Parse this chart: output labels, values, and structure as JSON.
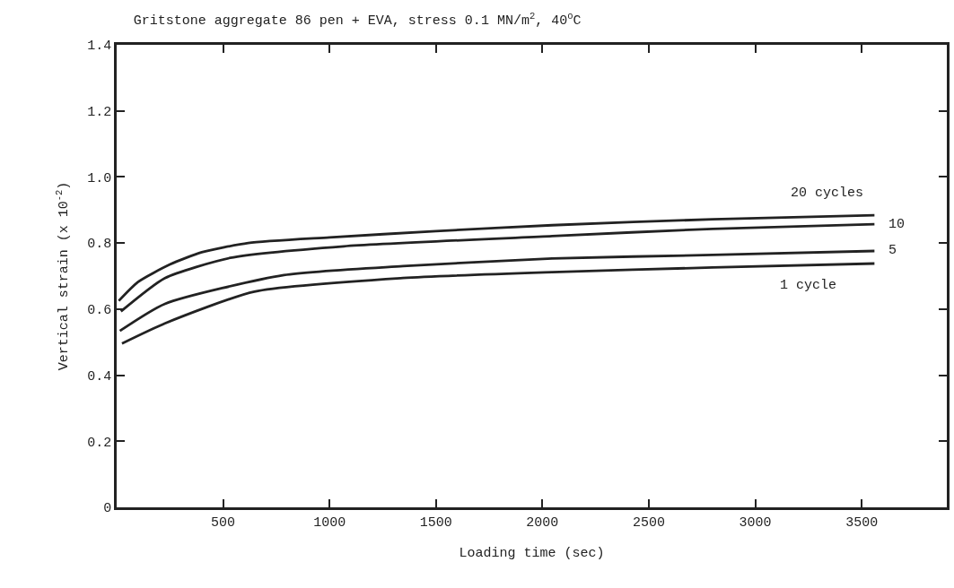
{
  "chart_data": {
    "type": "line",
    "title": "Gritstone aggregate 86 pen + EVA, stress 0.1 MN/m$^{2}$, 40$^{o}$C",
    "xlabel": "Loading time (sec)",
    "ylabel": "Vertical strain (x 10$^{-2}$)",
    "xlim": [
      0,
      3900
    ],
    "xticks": [
      500,
      1000,
      1500,
      2000,
      2500,
      3000,
      3500
    ],
    "ylim": [
      0,
      1.4
    ],
    "yticks": [
      0,
      0.2,
      0.4,
      0.6,
      0.8,
      {
        "value": 1,
        "label": "1.0"
      },
      1.2,
      1.4
    ],
    "legend": false,
    "marker": "none",
    "line_style": "solid",
    "series": [
      {
        "name": "20 cycles",
        "color": "#222222",
        "x": [
          10,
          100,
          250,
          400,
          618,
          1000,
          1500,
          2046,
          2800,
          3560
        ],
        "values": [
          0.625,
          0.682,
          0.735,
          0.772,
          0.8,
          0.817,
          0.836,
          0.854,
          0.872,
          0.884
        ]
      },
      {
        "name": "10",
        "color": "#222222",
        "x": [
          20,
          227,
          534,
          1067,
          2046,
          2800,
          3560
        ],
        "values": [
          0.593,
          0.694,
          0.755,
          0.79,
          0.821,
          0.843,
          0.857
        ]
      },
      {
        "name": "5",
        "color": "#222222",
        "x": [
          15,
          227,
          786,
          1345,
          2046,
          2800,
          3560
        ],
        "values": [
          0.534,
          0.616,
          0.703,
          0.73,
          0.753,
          0.764,
          0.776
        ]
      },
      {
        "name": "1 cycle",
        "color": "#222222",
        "x": [
          25,
          227,
          647,
          1345,
          2046,
          2800,
          3560
        ],
        "values": [
          0.496,
          0.557,
          0.653,
          0.694,
          0.712,
          0.726,
          0.738
        ]
      }
    ]
  }
}
